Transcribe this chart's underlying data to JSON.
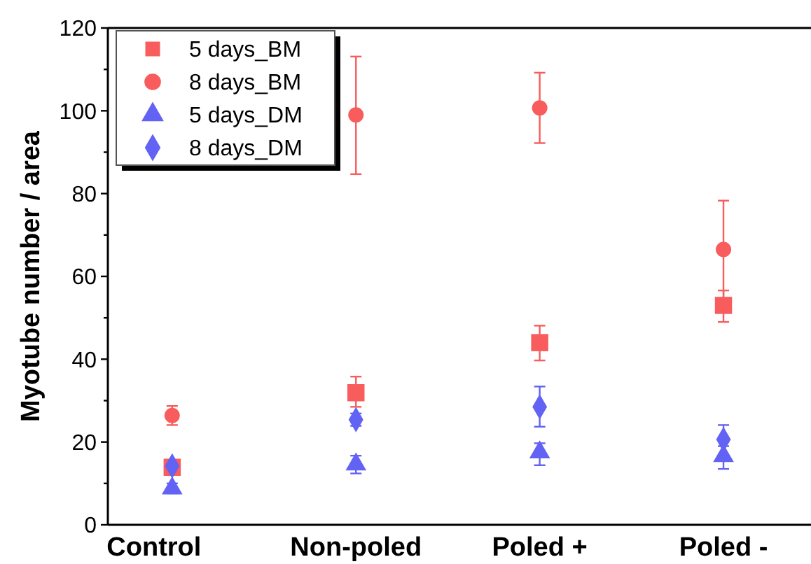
{
  "chart_data": {
    "type": "scatter",
    "ylabel": "Myotube number / area",
    "categories": [
      "Control",
      "Non-poled",
      "Poled +",
      "Poled -"
    ],
    "ylim": [
      0,
      120
    ],
    "yticks": [
      0,
      {
        "value": 10,
        "label": null
      },
      20,
      {
        "value": 30,
        "label": null
      },
      40,
      {
        "value": 50,
        "label": null
      },
      60,
      {
        "value": 70,
        "label": null
      },
      80,
      {
        "value": 90,
        "label": null
      },
      100,
      {
        "value": 110,
        "label": null
      },
      120
    ],
    "grid": false,
    "legend": "top left",
    "series": [
      {
        "name": "5 days_BM",
        "color": "#f85c5c",
        "marker": "square",
        "values": [
          13.9,
          31.9,
          44,
          53
        ],
        "errors": [
          null,
          [
            28.5,
            35.8
          ],
          [
            39.7,
            48.1
          ],
          [
            49,
            56.6
          ]
        ]
      },
      {
        "name": "8 days_BM",
        "color": "#f85c5c",
        "marker": "circle",
        "values": [
          26.4,
          99,
          100.7,
          66.5
        ],
        "errors": [
          2.3,
          [
            84.7,
            113.1
          ],
          [
            92.2,
            109.2
          ],
          [
            54.6,
            78.3
          ]
        ]
      },
      {
        "name": "5 days_DM",
        "color": "#6262f4",
        "marker": "triangle",
        "values": [
          8.8,
          14.6,
          17.5,
          16.6
        ],
        "errors": [
          1.2,
          [
            12.4,
            16.7
          ],
          [
            14.4,
            19.7
          ],
          [
            13.5,
            19
          ]
        ]
      },
      {
        "name": "8 days_DM",
        "color": "#6262f4",
        "marker": "diamond",
        "values": [
          14.2,
          25.4,
          28.5,
          20.6
        ],
        "errors": [
          null,
          1.5,
          [
            23.7,
            33.4
          ],
          [
            17,
            24.1
          ]
        ]
      }
    ]
  }
}
